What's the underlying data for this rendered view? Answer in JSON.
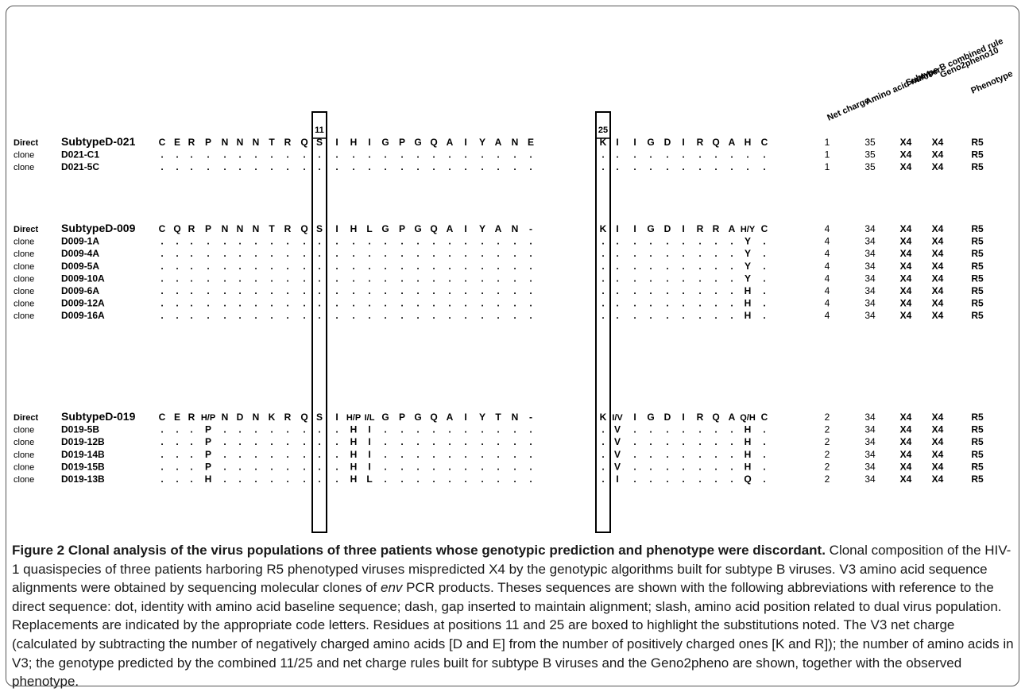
{
  "figure": {
    "column_headers": [
      "Net charge",
      "Amino acid number",
      "Subtype B combined rule",
      "Geno2pheno10",
      "Phenotype"
    ],
    "boxed_positions": [
      "11",
      "25"
    ],
    "groups": [
      {
        "rows": [
          {
            "type": "Direct",
            "name": "SubtypeD-021",
            "seq": [
              "C",
              "E",
              "R",
              "P",
              "N",
              "N",
              "N",
              "T",
              "R",
              "Q",
              "S",
              "I",
              "H",
              "I",
              "G",
              "P",
              "G",
              "Q",
              "A",
              "I",
              "Y",
              "A",
              "N",
              "E",
              "K",
              "I",
              "I",
              "G",
              "D",
              "I",
              "R",
              "Q",
              "A",
              "H",
              "C"
            ],
            "net": "1",
            "aa": "35",
            "rule": "X4",
            "g2p": "X4",
            "pheno": "R5"
          },
          {
            "type": "clone",
            "name": "D021-C1",
            "seq": [
              ".",
              ".",
              ".",
              ".",
              ".",
              ".",
              ".",
              ".",
              ".",
              ".",
              ".",
              ".",
              ".",
              ".",
              ".",
              ".",
              ".",
              ".",
              ".",
              ".",
              ".",
              ".",
              ".",
              ".",
              ".",
              ".",
              ".",
              ".",
              ".",
              ".",
              ".",
              ".",
              ".",
              ".",
              "."
            ],
            "net": "1",
            "aa": "35",
            "rule": "X4",
            "g2p": "X4",
            "pheno": "R5"
          },
          {
            "type": "clone",
            "name": "D021-5C",
            "seq": [
              ".",
              ".",
              ".",
              ".",
              ".",
              ".",
              ".",
              ".",
              ".",
              ".",
              ".",
              ".",
              ".",
              ".",
              ".",
              ".",
              ".",
              ".",
              ".",
              ".",
              ".",
              ".",
              ".",
              ".",
              ".",
              ".",
              ".",
              ".",
              ".",
              ".",
              ".",
              ".",
              ".",
              ".",
              "."
            ],
            "net": "1",
            "aa": "35",
            "rule": "X4",
            "g2p": "X4",
            "pheno": "R5"
          }
        ]
      },
      {
        "rows": [
          {
            "type": "Direct",
            "name": "SubtypeD-009",
            "seq": [
              "C",
              "Q",
              "R",
              "P",
              "N",
              "N",
              "N",
              "T",
              "R",
              "Q",
              "S",
              "I",
              "H",
              "L",
              "G",
              "P",
              "G",
              "Q",
              "A",
              "I",
              "Y",
              "A",
              "N",
              "-",
              "K",
              "I",
              "I",
              "G",
              "D",
              "I",
              "R",
              "R",
              "A",
              "H/Y",
              "C"
            ],
            "net": "4",
            "aa": "34",
            "rule": "X4",
            "g2p": "X4",
            "pheno": "R5"
          },
          {
            "type": "clone",
            "name": "D009-1A",
            "seq": [
              ".",
              ".",
              ".",
              ".",
              ".",
              ".",
              ".",
              ".",
              ".",
              ".",
              ".",
              ".",
              ".",
              ".",
              ".",
              ".",
              ".",
              ".",
              ".",
              ".",
              ".",
              ".",
              ".",
              ".",
              ".",
              ".",
              ".",
              ".",
              ".",
              ".",
              ".",
              ".",
              ".",
              "Y",
              "."
            ],
            "net": "4",
            "aa": "34",
            "rule": "X4",
            "g2p": "X4",
            "pheno": "R5"
          },
          {
            "type": "clone",
            "name": "D009-4A",
            "seq": [
              ".",
              ".",
              ".",
              ".",
              ".",
              ".",
              ".",
              ".",
              ".",
              ".",
              ".",
              ".",
              ".",
              ".",
              ".",
              ".",
              ".",
              ".",
              ".",
              ".",
              ".",
              ".",
              ".",
              ".",
              ".",
              ".",
              ".",
              ".",
              ".",
              ".",
              ".",
              ".",
              ".",
              "Y",
              "."
            ],
            "net": "4",
            "aa": "34",
            "rule": "X4",
            "g2p": "X4",
            "pheno": "R5"
          },
          {
            "type": "clone",
            "name": "D009-5A",
            "seq": [
              ".",
              ".",
              ".",
              ".",
              ".",
              ".",
              ".",
              ".",
              ".",
              ".",
              ".",
              ".",
              ".",
              ".",
              ".",
              ".",
              ".",
              ".",
              ".",
              ".",
              ".",
              ".",
              ".",
              ".",
              ".",
              ".",
              ".",
              ".",
              ".",
              ".",
              ".",
              ".",
              ".",
              "Y",
              "."
            ],
            "net": "4",
            "aa": "34",
            "rule": "X4",
            "g2p": "X4",
            "pheno": "R5"
          },
          {
            "type": "clone",
            "name": "D009-10A",
            "seq": [
              ".",
              ".",
              ".",
              ".",
              ".",
              ".",
              ".",
              ".",
              ".",
              ".",
              ".",
              ".",
              ".",
              ".",
              ".",
              ".",
              ".",
              ".",
              ".",
              ".",
              ".",
              ".",
              ".",
              ".",
              ".",
              ".",
              ".",
              ".",
              ".",
              ".",
              ".",
              ".",
              ".",
              "Y",
              "."
            ],
            "net": "4",
            "aa": "34",
            "rule": "X4",
            "g2p": "X4",
            "pheno": "R5"
          },
          {
            "type": "clone",
            "name": "D009-6A",
            "seq": [
              ".",
              ".",
              ".",
              ".",
              ".",
              ".",
              ".",
              ".",
              ".",
              ".",
              ".",
              ".",
              ".",
              ".",
              ".",
              ".",
              ".",
              ".",
              ".",
              ".",
              ".",
              ".",
              ".",
              ".",
              ".",
              ".",
              ".",
              ".",
              ".",
              ".",
              ".",
              ".",
              ".",
              "H",
              "."
            ],
            "net": "4",
            "aa": "34",
            "rule": "X4",
            "g2p": "X4",
            "pheno": "R5"
          },
          {
            "type": "clone",
            "name": "D009-12A",
            "seq": [
              ".",
              ".",
              ".",
              ".",
              ".",
              ".",
              ".",
              ".",
              ".",
              ".",
              ".",
              ".",
              ".",
              ".",
              ".",
              ".",
              ".",
              ".",
              ".",
              ".",
              ".",
              ".",
              ".",
              ".",
              ".",
              ".",
              ".",
              ".",
              ".",
              ".",
              ".",
              ".",
              ".",
              "H",
              "."
            ],
            "net": "4",
            "aa": "34",
            "rule": "X4",
            "g2p": "X4",
            "pheno": "R5"
          },
          {
            "type": "clone",
            "name": "D009-16A",
            "seq": [
              ".",
              ".",
              ".",
              ".",
              ".",
              ".",
              ".",
              ".",
              ".",
              ".",
              ".",
              ".",
              ".",
              ".",
              ".",
              ".",
              ".",
              ".",
              ".",
              ".",
              ".",
              ".",
              ".",
              ".",
              ".",
              ".",
              ".",
              ".",
              ".",
              ".",
              ".",
              ".",
              ".",
              "H",
              "."
            ],
            "net": "4",
            "aa": "34",
            "rule": "X4",
            "g2p": "X4",
            "pheno": "R5"
          }
        ]
      },
      {
        "rows": [
          {
            "type": "Direct",
            "name": "SubtypeD-019",
            "seq": [
              "C",
              "E",
              "R",
              "H/P",
              "N",
              "D",
              "N",
              "K",
              "R",
              "Q",
              "S",
              "I",
              "H/P",
              "I/L",
              "G",
              "P",
              "G",
              "Q",
              "A",
              "I",
              "Y",
              "T",
              "N",
              "-",
              "K",
              "I/V",
              "I",
              "G",
              "D",
              "I",
              "R",
              "Q",
              "A",
              "Q/H",
              "C"
            ],
            "net": "2",
            "aa": "34",
            "rule": "X4",
            "g2p": "X4",
            "pheno": "R5"
          },
          {
            "type": "clone",
            "name": "D019-5B",
            "seq": [
              ".",
              ".",
              ".",
              "P",
              ".",
              ".",
              ".",
              ".",
              ".",
              ".",
              ".",
              ".",
              "H",
              "I",
              ".",
              ".",
              ".",
              ".",
              ".",
              ".",
              ".",
              ".",
              ".",
              ".",
              ".",
              "V",
              ".",
              ".",
              ".",
              ".",
              ".",
              ".",
              ".",
              "H",
              "."
            ],
            "net": "2",
            "aa": "34",
            "rule": "X4",
            "g2p": "X4",
            "pheno": "R5"
          },
          {
            "type": "clone",
            "name": "D019-12B",
            "seq": [
              ".",
              ".",
              ".",
              "P",
              ".",
              ".",
              ".",
              ".",
              ".",
              ".",
              ".",
              ".",
              "H",
              "I",
              ".",
              ".",
              ".",
              ".",
              ".",
              ".",
              ".",
              ".",
              ".",
              ".",
              ".",
              "V",
              ".",
              ".",
              ".",
              ".",
              ".",
              ".",
              ".",
              "H",
              "."
            ],
            "net": "2",
            "aa": "34",
            "rule": "X4",
            "g2p": "X4",
            "pheno": "R5"
          },
          {
            "type": "clone",
            "name": "D019-14B",
            "seq": [
              ".",
              ".",
              ".",
              "P",
              ".",
              ".",
              ".",
              ".",
              ".",
              ".",
              ".",
              ".",
              "H",
              "I",
              ".",
              ".",
              ".",
              ".",
              ".",
              ".",
              ".",
              ".",
              ".",
              ".",
              ".",
              "V",
              ".",
              ".",
              ".",
              ".",
              ".",
              ".",
              ".",
              "H",
              "."
            ],
            "net": "2",
            "aa": "34",
            "rule": "X4",
            "g2p": "X4",
            "pheno": "R5"
          },
          {
            "type": "clone",
            "name": "D019-15B",
            "seq": [
              ".",
              ".",
              ".",
              "P",
              ".",
              ".",
              ".",
              ".",
              ".",
              ".",
              ".",
              ".",
              "H",
              "I",
              ".",
              ".",
              ".",
              ".",
              ".",
              ".",
              ".",
              ".",
              ".",
              ".",
              ".",
              "V",
              ".",
              ".",
              ".",
              ".",
              ".",
              ".",
              ".",
              "H",
              "."
            ],
            "net": "2",
            "aa": "34",
            "rule": "X4",
            "g2p": "X4",
            "pheno": "R5"
          },
          {
            "type": "clone",
            "name": "D019-13B",
            "seq": [
              ".",
              ".",
              ".",
              "H",
              ".",
              ".",
              ".",
              ".",
              ".",
              ".",
              ".",
              ".",
              "H",
              "L",
              ".",
              ".",
              ".",
              ".",
              ".",
              ".",
              ".",
              ".",
              ".",
              ".",
              ".",
              "I",
              ".",
              ".",
              ".",
              ".",
              ".",
              ".",
              ".",
              "Q",
              "."
            ],
            "net": "2",
            "aa": "34",
            "rule": "X4",
            "g2p": "X4",
            "pheno": "R5"
          }
        ]
      }
    ]
  },
  "caption": {
    "title": "Figure 2 Clonal analysis of the virus populations of three patients whose genotypic prediction and phenotype were discordant",
    "title_end": ".",
    "body_1": " Clonal composition of the HIV-1 quasispecies of three patients harboring R5 phenotyped viruses mispredicted X4 by the genotypic algorithms built for subtype B viruses. V3 amino acid sequence alignments were obtained by sequencing molecular clones of ",
    "italic": "env",
    "body_2": " PCR products. Theses sequences are shown with the following abbreviations with reference to the direct sequence: dot, identity with amino acid baseline sequence; dash, gap inserted to maintain alignment; slash, amino acid position related to dual virus population. Replacements are indicated by the appropriate code letters. Residues at positions 11 and 25 are boxed to highlight the substitutions noted. The V3 net charge (calculated by subtracting the number of negatively charged amino acids [D and E] from the number of positively charged ones [K and R]); the number of amino acids in V3; the genotype predicted by the combined 11/25 and net charge rules built for subtype B viruses and the Geno2pheno are shown, together with the observed phenotype."
  }
}
